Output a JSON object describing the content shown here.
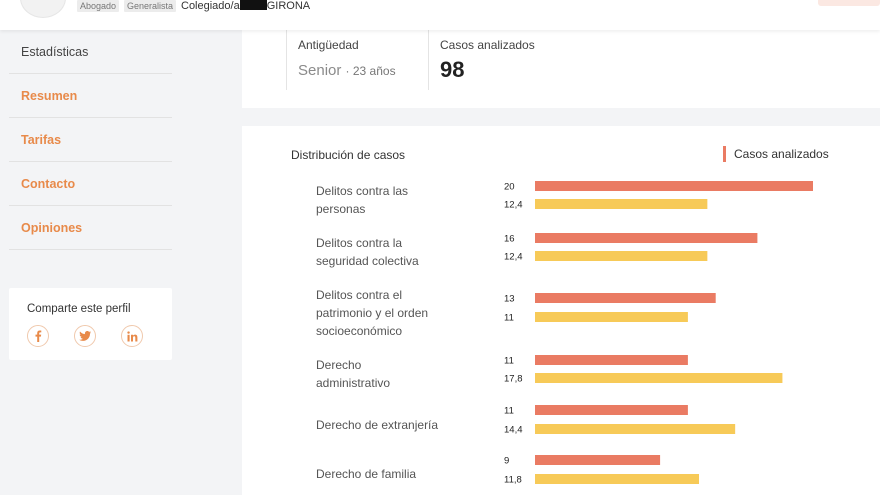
{
  "header": {
    "tags": [
      "Abogado",
      "Generalista"
    ],
    "colegiado_prefix": "Colegiado/a",
    "colegiado_city": "GIRONA"
  },
  "sidebar": {
    "items": [
      {
        "label": "Estadísticas"
      },
      {
        "label": "Resumen"
      },
      {
        "label": "Tarifas"
      },
      {
        "label": "Contacto"
      },
      {
        "label": "Opiniones"
      }
    ]
  },
  "share": {
    "title": "Comparte este perfil",
    "icons": [
      "facebook-icon",
      "twitter-icon",
      "linkedin-icon"
    ]
  },
  "stats": {
    "antiguedad_label": "Antigüedad",
    "antiguedad_value": "Senior",
    "antiguedad_years": "· 23 años",
    "casos_label": "Casos analizados",
    "casos_value": "98"
  },
  "chart_data": {
    "type": "bar",
    "orientation": "horizontal",
    "title": "Distribución de casos",
    "legend": "Casos analizados",
    "categories": [
      [
        "Delitos contra las",
        "personas"
      ],
      [
        "Delitos contra la",
        "seguridad colectiva"
      ],
      [
        "Delitos contra el",
        "patrimonio y el orden",
        "socioeconómico"
      ],
      [
        "Derecho",
        "administrativo"
      ],
      [
        "Derecho de extranjería"
      ],
      [
        "Derecho de familia"
      ]
    ],
    "series": [
      {
        "name": "Casos analizados",
        "color": "#ea7b63",
        "values": [
          20,
          16,
          13,
          11,
          11,
          9
        ],
        "labels": [
          "20",
          "16",
          "13",
          "11",
          "11",
          "9"
        ]
      },
      {
        "color": "#f7ca58",
        "values": [
          12.4,
          12.4,
          11,
          17.8,
          14.4,
          11.8
        ],
        "labels": [
          "12,4",
          "12,4",
          "11",
          "17,8",
          "14,4",
          "11,8"
        ]
      }
    ]
  }
}
